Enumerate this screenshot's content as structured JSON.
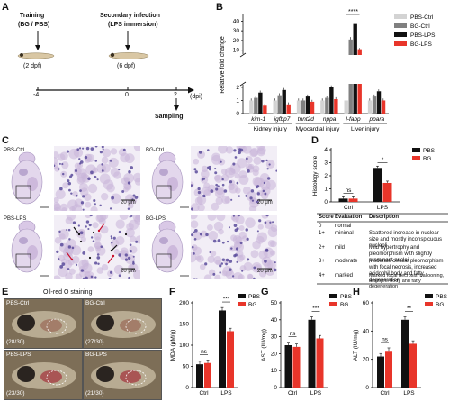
{
  "panels": {
    "A": "A",
    "B": "B",
    "C": "C",
    "D": "D",
    "E": "E",
    "F": "F",
    "G": "G",
    "H": "H"
  },
  "panel_a": {
    "training_title": "Training",
    "training_sub": "(BG / PBS)",
    "training_age": "(2 dpf)",
    "infection_title": "Secondary infection",
    "infection_sub": "(LPS immersion)",
    "infection_age": "(6 dpf)",
    "ticks": [
      "-4",
      "0",
      "2"
    ],
    "dpi": "(dpi)",
    "sampling": "Sampling"
  },
  "panel_c": {
    "labels": [
      "PBS-Ctrl",
      "BG-Ctrl",
      "PBS-LPS",
      "BG-LPS"
    ],
    "scale": "20 μm",
    "colors": {
      "tissue": "#c9b5d9",
      "bg": "#f2eef6",
      "nuclei": "#5b4b9b"
    }
  },
  "panel_e": {
    "title": "Oil-red O staining",
    "labels": [
      "PBS-Ctrl",
      "BG-Ctrl",
      "PBS-LPS",
      "BG-LPS"
    ],
    "counts": [
      "(28/30)",
      "(27/30)",
      "(23/30)",
      "(21/30)"
    ]
  },
  "legend_b": [
    "PBS-Ctrl",
    "BG-Ctrl",
    "PBS-LPS",
    "BG-LPS"
  ],
  "legend_pbs_bg": [
    "PBS",
    "BG"
  ],
  "histology_table": {
    "headers": [
      "Score",
      "Evaluation",
      "Description"
    ],
    "rows": [
      {
        "score": "0",
        "eval": "normal",
        "desc": ""
      },
      {
        "score": "1+",
        "eval": "minimal",
        "desc": "Scattered increase in nuclear size and mostly inconspicuous nucleoli"
      },
      {
        "score": "2+",
        "eval": "mild",
        "desc": "Mild hypertrophy and pleomorphism with slightly prominent nuclei"
      },
      {
        "score": "3+",
        "eval": "moderate",
        "desc": "Moderate cellular pleomorphism with focal necrosis, increased acidophil body and fatty degeneration"
      },
      {
        "score": "4+",
        "eval": "marked",
        "desc": "Marked focal necrosis, ballooning, acidophil body and fatty degeneration"
      }
    ]
  },
  "chart_data": [
    {
      "id": "B",
      "type": "bar",
      "ylabel": "Relative fold change",
      "yticks": [
        "0",
        "1",
        "2",
        "10",
        "20",
        "30",
        "40"
      ],
      "ylim": [
        0,
        45
      ],
      "axis_break": [
        2.2,
        6
      ],
      "categories": [
        "kim-1",
        "igfbp7",
        "tnnt2d",
        "nppa",
        "l-fabp",
        "ppara"
      ],
      "groups": [
        {
          "label": "Kidney injury",
          "members": [
            "kim-1",
            "igfbp7"
          ]
        },
        {
          "label": "Myocardial injury",
          "members": [
            "tnnt2d",
            "nppa"
          ]
        },
        {
          "label": "Liver injury",
          "members": [
            "l-fabp",
            "ppara"
          ]
        }
      ],
      "series": [
        {
          "name": "PBS-Ctrl",
          "color": "#d3d3d3",
          "values": [
            1.0,
            1.0,
            1.0,
            1.0,
            1.0,
            1.0
          ]
        },
        {
          "name": "BG-Ctrl",
          "color": "#808080",
          "values": [
            1.2,
            1.4,
            1.0,
            1.2,
            21,
            1.3
          ]
        },
        {
          "name": "PBS-LPS",
          "color": "#111111",
          "values": [
            1.6,
            1.8,
            1.3,
            2.0,
            37,
            1.7
          ]
        },
        {
          "name": "BG-LPS",
          "color": "#e8352a",
          "values": [
            0.6,
            0.7,
            0.9,
            1.1,
            11,
            1.0
          ]
        }
      ],
      "significance": "****"
    },
    {
      "id": "D",
      "type": "bar",
      "ylabel": "Histology score",
      "yticks": [
        "0",
        "1",
        "2",
        "3",
        "4"
      ],
      "ylim": [
        0,
        4
      ],
      "categories": [
        "Ctrl",
        "LPS"
      ],
      "series": [
        {
          "name": "PBS",
          "color": "#111111",
          "values": [
            0.25,
            2.6
          ]
        },
        {
          "name": "BG",
          "color": "#e8352a",
          "values": [
            0.25,
            1.45
          ]
        }
      ],
      "annotations": [
        "ns",
        "*"
      ]
    },
    {
      "id": "F",
      "type": "bar",
      "ylabel": "MDA (μM/g)",
      "yticks": [
        "0",
        "50",
        "100",
        "150",
        "200"
      ],
      "ylim": [
        0,
        200
      ],
      "categories": [
        "Ctrl",
        "LPS"
      ],
      "series": [
        {
          "name": "PBS",
          "color": "#111111",
          "values": [
            55,
            182
          ]
        },
        {
          "name": "BG",
          "color": "#e8352a",
          "values": [
            58,
            133
          ]
        }
      ],
      "annotations": [
        "ns",
        "***"
      ]
    },
    {
      "id": "G",
      "type": "bar",
      "ylabel": "AST (IU/mg)",
      "yticks": [
        "0",
        "10",
        "20",
        "30",
        "40",
        "50"
      ],
      "ylim": [
        0,
        50
      ],
      "categories": [
        "Ctrl",
        "LPS"
      ],
      "series": [
        {
          "name": "PBS",
          "color": "#111111",
          "values": [
            25,
            40
          ]
        },
        {
          "name": "BG",
          "color": "#e8352a",
          "values": [
            24,
            29
          ]
        }
      ],
      "annotations": [
        "ns",
        "***"
      ]
    },
    {
      "id": "H",
      "type": "bar",
      "ylabel": "ALT (IU/mg)",
      "yticks": [
        "0",
        "20",
        "40",
        "60"
      ],
      "ylim": [
        0,
        60
      ],
      "categories": [
        "Ctrl",
        "LPS"
      ],
      "series": [
        {
          "name": "PBS",
          "color": "#111111",
          "values": [
            22,
            48
          ]
        },
        {
          "name": "BG",
          "color": "#e8352a",
          "values": [
            26,
            31
          ]
        }
      ],
      "annotations": [
        "ns",
        "**"
      ]
    }
  ]
}
